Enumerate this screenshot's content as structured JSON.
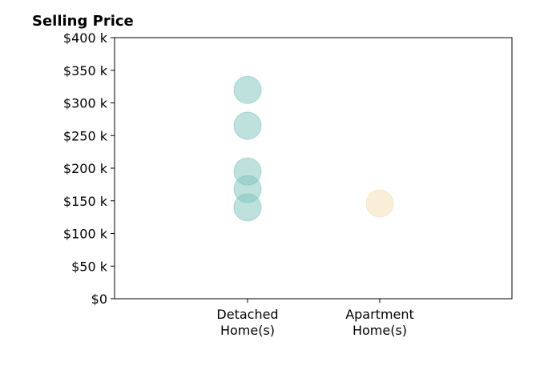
{
  "chart_data": {
    "type": "scatter",
    "title": "Selling Price",
    "xlabel": "",
    "ylabel": "",
    "categories": [
      "Detached\nHome(s)",
      "Apartment\nHome(s)"
    ],
    "y_ticks": [
      "$0",
      "$50 k",
      "$100 k",
      "$150 k",
      "$200 k",
      "$250 k",
      "$300 k",
      "$350 k",
      "$400 k"
    ],
    "ylim": [
      0,
      400000
    ],
    "grid": false,
    "series": [
      {
        "category": "Detached\nHome(s)",
        "color": "#7fc4bb",
        "values": [
          320000,
          265000,
          195000,
          168000,
          140000
        ]
      },
      {
        "category": "Apartment\nHome(s)",
        "color": "#f3ddb0",
        "values": [
          146000
        ]
      }
    ]
  }
}
